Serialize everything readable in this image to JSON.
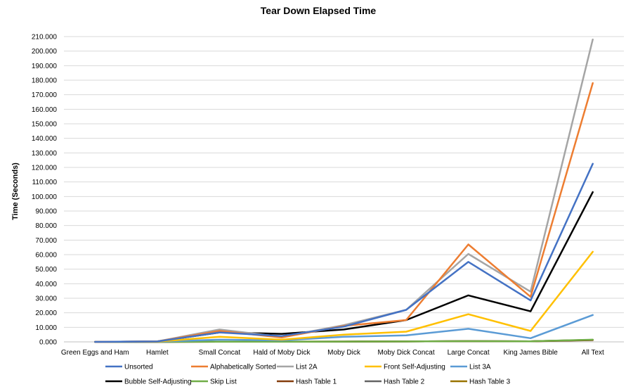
{
  "chart_data": {
    "type": "line",
    "title": "Tear Down Elapsed Time",
    "xlabel": "",
    "ylabel": "Time (Seconds)",
    "ylim": [
      0,
      210
    ],
    "ytick_step": 10,
    "ytick_format_decimals": 3,
    "grid": true,
    "legend_position": "bottom",
    "categories": [
      "Green Eggs and Ham",
      "Hamlet",
      "Small Concat",
      "Hald of Moby Dick",
      "Moby Dick",
      "Moby Dick Concat",
      "Large Concat",
      "King James Bible",
      "All Text"
    ],
    "series": [
      {
        "name": "Unsorted",
        "color": "#4472c4",
        "values": [
          0.02,
          0.3,
          6.5,
          4.0,
          10.5,
          22.0,
          55.0,
          28.5,
          122.5
        ]
      },
      {
        "name": "Alphabetically Sorted",
        "color": "#ed7d31",
        "values": [
          0.02,
          0.3,
          7.5,
          3.0,
          11.0,
          15.0,
          67.0,
          31.0,
          178.0
        ]
      },
      {
        "name": "List 2A",
        "color": "#a5a5a5",
        "values": [
          0.02,
          0.35,
          8.5,
          3.5,
          11.5,
          22.0,
          60.5,
          34.5,
          208.0
        ]
      },
      {
        "name": "Front Self-Adjusting",
        "color": "#ffc000",
        "values": [
          0.01,
          0.2,
          3.5,
          1.5,
          5.0,
          7.0,
          19.0,
          7.5,
          62.0
        ]
      },
      {
        "name": "List 3A",
        "color": "#5b9bd5",
        "values": [
          0.01,
          0.1,
          1.5,
          1.0,
          3.5,
          4.5,
          9.0,
          2.5,
          18.5
        ]
      },
      {
        "name": "Bubble Self-Adjusting",
        "color": "#000000",
        "values": [
          0.02,
          0.3,
          6.5,
          5.5,
          8.5,
          15.0,
          32.0,
          21.0,
          103.0
        ]
      },
      {
        "name": "Skip List",
        "color": "#70ad47",
        "values": [
          0,
          0.01,
          0.1,
          0.1,
          0.2,
          0.3,
          0.5,
          0.4,
          1.5
        ]
      },
      {
        "name": "Hash Table 1",
        "color": "#843c0c",
        "values": [
          0,
          0.01,
          0.1,
          0.1,
          0.2,
          0.3,
          0.5,
          0.4,
          1.2
        ]
      },
      {
        "name": "Hash Table 2",
        "color": "#636363",
        "values": [
          0,
          0.01,
          0.1,
          0.1,
          0.2,
          0.3,
          0.5,
          0.4,
          1.3
        ]
      },
      {
        "name": "Hash Table 3",
        "color": "#997300",
        "values": [
          0,
          0.01,
          0.1,
          0.1,
          0.2,
          0.3,
          0.5,
          0.4,
          1.4
        ]
      }
    ]
  }
}
